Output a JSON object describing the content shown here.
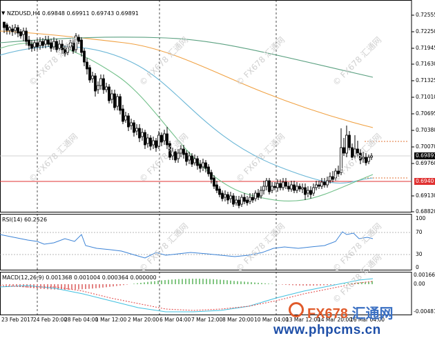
{
  "chart": {
    "symbol_header": "NZDUSD,H4  0.69848 0.69911 0.69743 0.69891",
    "current_price": "0.69891",
    "line_price": "0.6940",
    "price_ticks": [
      "0.72555",
      "0.72250",
      "0.71945",
      "0.71630",
      "0.71325",
      "0.71010",
      "0.70695",
      "0.70380",
      "0.70070",
      "0.69760",
      "0.69130",
      "0.68820"
    ],
    "colors": {
      "line_red": "#e03030",
      "ma_orange": "#f0a040",
      "ma_green_dark": "#5aa080",
      "ma_teal": "#6ab6d6",
      "ma_green_light": "#72c08a",
      "candle": "#000000"
    }
  },
  "rsi": {
    "header": "RSI(14) 60.2526",
    "levels": [
      "100",
      "70",
      "30",
      "0"
    ],
    "color": "#3a82d6"
  },
  "macd": {
    "header": "MACD(12,26,9) 0.001368 0.001004 0.000364 0.000000",
    "ticks": [
      "0.001662",
      "0.00",
      "-0.004817"
    ]
  },
  "time_axis": [
    "23 Feb 2017",
    "24 Feb 20:00",
    "28 Feb 04:00",
    "1 Mar 12:00",
    "2 Mar 20:00",
    "6 Mar 04:00",
    "7 Mar 12:00",
    "8 Mar 20:00",
    "10 Mar 04:00",
    "13 Mar 12:00",
    "14 Mar 20:00",
    "16 Mar 04:00"
  ],
  "watermark": {
    "text": "© FX678 汇通网",
    "logo_latin": "FX678",
    "logo_zh": "汇通网",
    "url": "www.phpcms.cn"
  }
}
